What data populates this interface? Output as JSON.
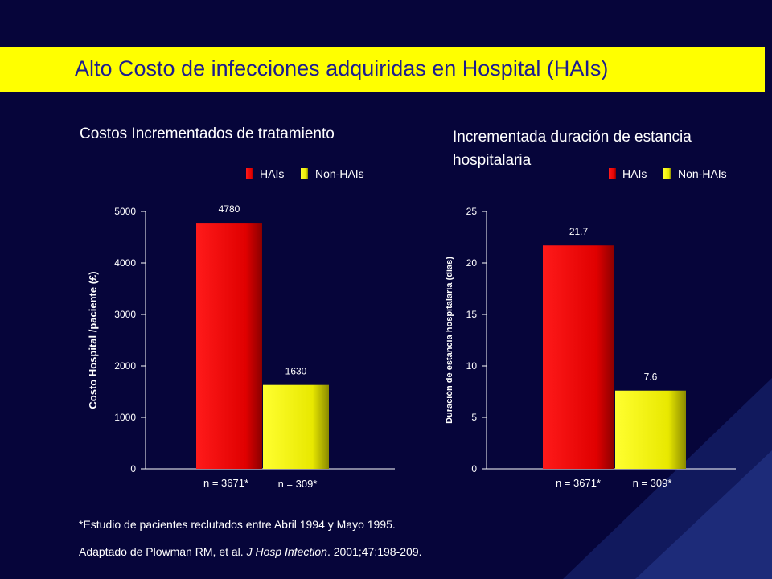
{
  "slide": {
    "title": "Alto Costo de infecciones adquiridas en Hospital (HAIs)",
    "footnote_1": "*Estudio de  pacientes reclutados entre  Abril 1994  y  Mayo 1995.",
    "footnote_2_prefix": "Adaptado de Plowman RM, et al. ",
    "footnote_2_journal": "J Hosp Infection",
    "footnote_2_suffix": ". 2001;47:198-209.",
    "colors": {
      "background": "#06053a",
      "title_bar": "#ffff00",
      "title_text": "#1d1d8f",
      "hai_series": "#e00000",
      "non_hai_series": "#e8e800"
    }
  },
  "chart_data": [
    {
      "type": "bar",
      "title": "Costos Incrementados de tratamiento",
      "ylabel": "Costo Hospital /paciente (£)",
      "xlabel": "",
      "ylim": [
        0,
        5000
      ],
      "yticks": [
        0,
        1000,
        2000,
        3000,
        4000,
        5000
      ],
      "grid": false,
      "legend_position": "top-right",
      "series": [
        {
          "name": "HAIs",
          "values": [
            4780
          ],
          "category": "n = 3671*",
          "color": "#e00000"
        },
        {
          "name": "Non-HAIs",
          "values": [
            1630
          ],
          "category": "n = 309*",
          "color": "#e8e800"
        }
      ]
    },
    {
      "type": "bar",
      "title": "Incrementada duración de estancia hospitalaria",
      "ylabel": "Duración  de estancia hospitalaria  (días)",
      "xlabel": "",
      "ylim": [
        0,
        25
      ],
      "yticks": [
        0,
        5,
        10,
        15,
        20,
        25
      ],
      "grid": false,
      "legend_position": "top-right",
      "series": [
        {
          "name": "HAIs",
          "values": [
            21.7
          ],
          "category": "n = 3671*",
          "color": "#e00000"
        },
        {
          "name": "Non-HAIs",
          "values": [
            7.6
          ],
          "category": "n = 309*",
          "color": "#e8e800"
        }
      ]
    }
  ]
}
